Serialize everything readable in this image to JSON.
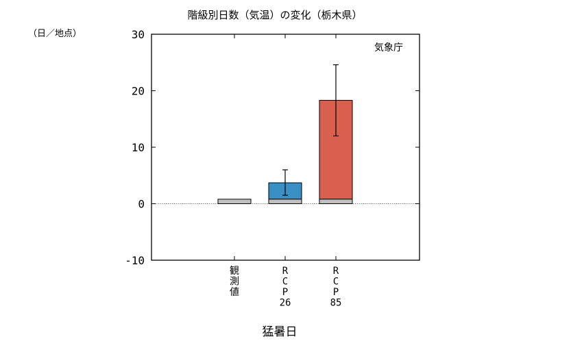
{
  "chart_data": {
    "type": "bar",
    "title": "階級別日数（気温）の変化（栃木県）",
    "ylabel": "（日／地点）",
    "xlabel": "猛暑日",
    "source": "気象庁",
    "ylim": [
      -10,
      30
    ],
    "yticks": [
      -10,
      0,
      10,
      20,
      30
    ],
    "grid": false,
    "categories": [
      {
        "label": "観測値",
        "label_lines": [
          "観",
          "測",
          "値"
        ]
      },
      {
        "label": "RCP26",
        "label_lines": [
          "R",
          "C",
          "P",
          "26"
        ]
      },
      {
        "label": "RCP85",
        "label_lines": [
          "R",
          "C",
          "P",
          "85"
        ]
      }
    ],
    "base_values": [
      0.8,
      0.8,
      0.8
    ],
    "change_values": [
      null,
      2.9,
      17.5
    ],
    "totals": [
      0.8,
      3.7,
      18.3
    ],
    "error_bars": [
      null,
      {
        "low": 1.5,
        "high": 6.0
      },
      {
        "low": 12.0,
        "high": 24.6
      }
    ],
    "colors": {
      "base": "#c0c0c0",
      "RCP26": "#3a8fc5",
      "RCP85": "#d9604f",
      "zero_line": "#555555",
      "axis": "#000000"
    }
  }
}
